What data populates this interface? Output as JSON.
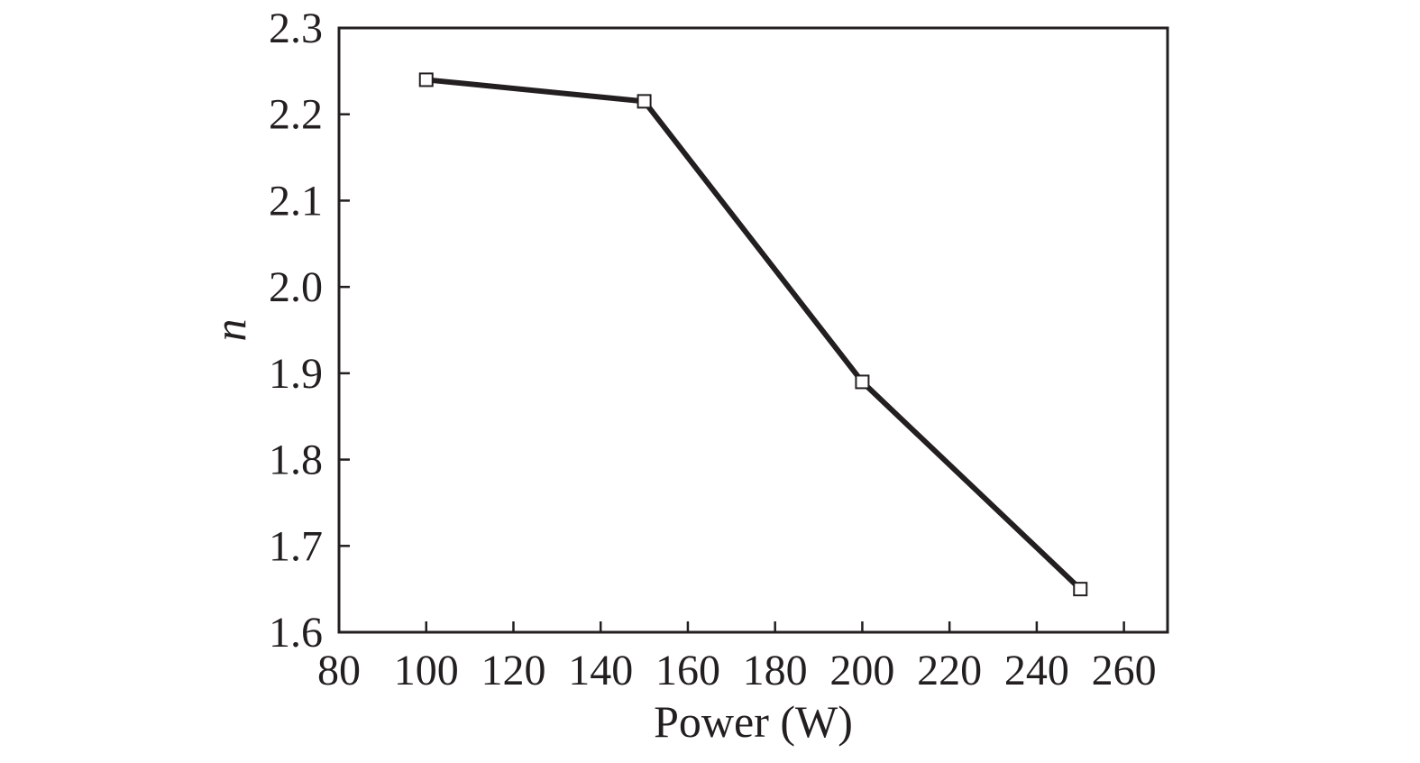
{
  "chart_data": {
    "type": "line",
    "title": "",
    "xlabel": "Power (W)",
    "ylabel": "n",
    "xlim": [
      80,
      270
    ],
    "ylim": [
      1.6,
      2.3
    ],
    "xticks": [
      80,
      100,
      120,
      140,
      160,
      180,
      200,
      220,
      240,
      260
    ],
    "yticks": [
      1.6,
      1.7,
      1.8,
      1.9,
      2.0,
      2.1,
      2.2,
      2.3
    ],
    "xtick_labels": [
      "80",
      "100",
      "120",
      "140",
      "160",
      "180",
      "200",
      "220",
      "240",
      "260"
    ],
    "ytick_labels": [
      "1.6",
      "1.7",
      "1.8",
      "1.9",
      "2.0",
      "2.1",
      "2.2",
      "2.3"
    ],
    "grid": false,
    "legend": "none",
    "series": [
      {
        "x": [
          100,
          150,
          200,
          250
        ],
        "y": [
          2.24,
          2.215,
          1.89,
          1.65
        ],
        "marker": "open-square",
        "color": "#231f20"
      }
    ]
  }
}
